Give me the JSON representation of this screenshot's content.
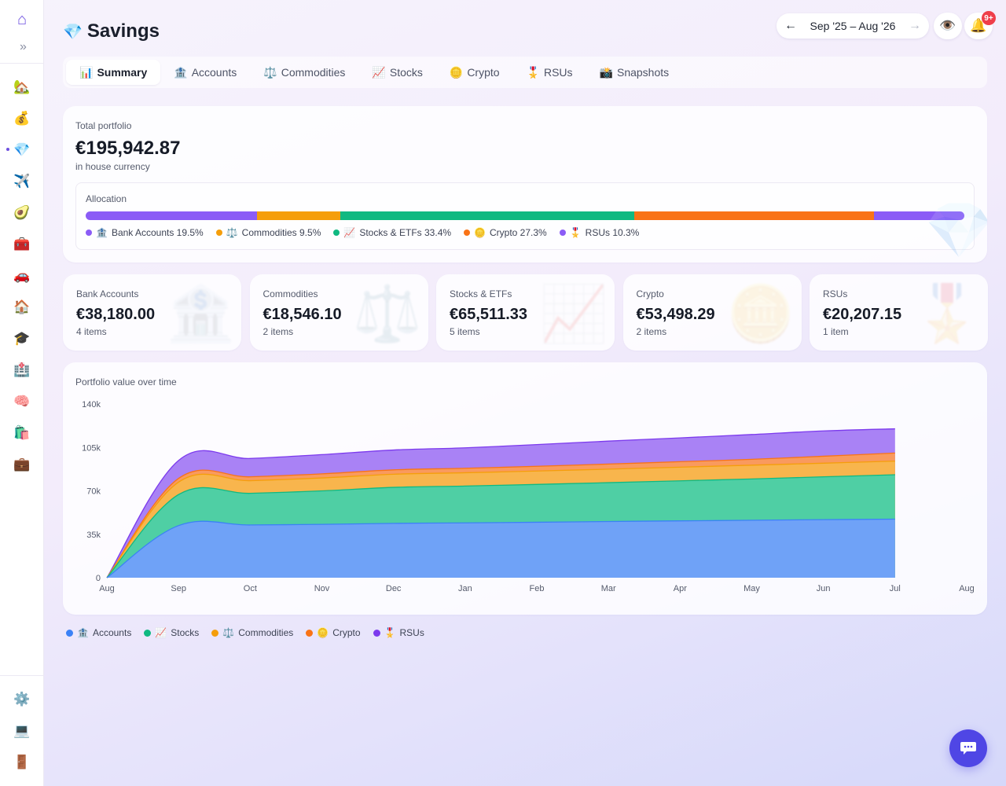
{
  "sidebar": {
    "logo_icon": "⌂",
    "expand_icon": "»",
    "items": [
      {
        "name": "sidebar-item-home",
        "icon": "🏡",
        "icon_name": "house-garden-icon",
        "top": 0
      },
      {
        "name": "sidebar-item-money",
        "icon": "💰",
        "icon_name": "money-bag-icon"
      },
      {
        "name": "sidebar-item-savings",
        "icon": "💎",
        "icon_name": "gem-icon",
        "active": true
      },
      {
        "name": "sidebar-item-travel",
        "icon": "✈️",
        "icon_name": "airplane-icon"
      },
      {
        "name": "sidebar-item-food",
        "icon": "🥑",
        "icon_name": "avocado-icon"
      },
      {
        "name": "sidebar-item-tools",
        "icon": "🧰",
        "icon_name": "toolbox-icon"
      },
      {
        "name": "sidebar-item-car",
        "icon": "🚗",
        "icon_name": "car-icon"
      },
      {
        "name": "sidebar-item-house",
        "icon": "🏠",
        "icon_name": "house-icon"
      },
      {
        "name": "sidebar-item-education",
        "icon": "🎓",
        "icon_name": "graduation-cap-icon"
      },
      {
        "name": "sidebar-item-health",
        "icon": "🏥",
        "icon_name": "hospital-icon"
      },
      {
        "name": "sidebar-item-mind",
        "icon": "🧠",
        "icon_name": "brain-icon"
      },
      {
        "name": "sidebar-item-shopping",
        "icon": "🛍️",
        "icon_name": "shopping-bags-icon"
      },
      {
        "name": "sidebar-item-work",
        "icon": "💼",
        "icon_name": "briefcase-icon"
      }
    ],
    "bottom_items": [
      {
        "name": "sidebar-item-settings",
        "icon": "⚙️",
        "icon_name": "gear-icon"
      },
      {
        "name": "sidebar-item-device",
        "icon": "💻",
        "icon_name": "laptop-icon"
      },
      {
        "name": "sidebar-item-logout",
        "icon": "🚪",
        "icon_name": "door-icon"
      }
    ]
  },
  "header": {
    "icon": "💎",
    "title": "Savings",
    "date_range": "Sep '25 – Aug '26",
    "prev_icon": "←",
    "next_icon": "→",
    "eye_icon": "👁️",
    "bell_icon": "🔔",
    "notification_count": "9+"
  },
  "tabs": [
    {
      "icon": "📊",
      "label": "Summary",
      "active": true
    },
    {
      "icon": "🏦",
      "label": "Accounts"
    },
    {
      "icon": "⚖️",
      "label": "Commodities"
    },
    {
      "icon": "📈",
      "label": "Stocks"
    },
    {
      "icon": "🪙",
      "label": "Crypto"
    },
    {
      "icon": "🎖️",
      "label": "RSUs"
    },
    {
      "icon": "📸",
      "label": "Snapshots"
    }
  ],
  "total": {
    "label": "Total portfolio",
    "value": "€195,942.87",
    "sub": "in house currency",
    "allocation_title": "Allocation",
    "allocation": [
      {
        "icon": "🏦",
        "label": "Bank Accounts 19.5%",
        "share": 19.5,
        "color": "#8b5cf6"
      },
      {
        "icon": "⚖️",
        "label": "Commodities 9.5%",
        "share": 9.5,
        "color": "#f59e0b"
      },
      {
        "icon": "📈",
        "label": "Stocks & ETFs 33.4%",
        "share": 33.4,
        "color": "#10b981"
      },
      {
        "icon": "🪙",
        "label": "Crypto 27.3%",
        "share": 27.3,
        "color": "#f97316"
      },
      {
        "icon": "🎖️",
        "label": "RSUs 10.3%",
        "share": 10.3,
        "color": "#8b5cf6"
      }
    ]
  },
  "stats": [
    {
      "label": "Bank Accounts",
      "value": "€38,180.00",
      "sub": "4 items",
      "ghost": "🏦"
    },
    {
      "label": "Commodities",
      "value": "€18,546.10",
      "sub": "2 items",
      "ghost": "⚖️"
    },
    {
      "label": "Stocks & ETFs",
      "value": "€65,511.33",
      "sub": "5 items",
      "ghost": "📈"
    },
    {
      "label": "Crypto",
      "value": "€53,498.29",
      "sub": "2 items",
      "ghost": "🪙"
    },
    {
      "label": "RSUs",
      "value": "€20,207.15",
      "sub": "1 item",
      "ghost": "🎖️"
    }
  ],
  "chart_data": {
    "type": "area",
    "stacked": true,
    "title": "Portfolio value over time",
    "x": [
      "Aug",
      "Sep",
      "Oct",
      "Nov",
      "Dec",
      "Jan",
      "Feb",
      "Mar",
      "Apr",
      "May",
      "Jun",
      "Jul",
      "Aug"
    ],
    "y_ticks": [
      "0",
      "35k",
      "70k",
      "105k",
      "140k"
    ],
    "ylim": [
      0,
      140000
    ],
    "series": [
      {
        "name": "Accounts",
        "icon": "🏦",
        "color": "#3b82f6",
        "fill": "#6fa2f7",
        "values": [
          0,
          42000,
          42500,
          43000,
          43800,
          44200,
          44700,
          45300,
          45800,
          46300,
          46800,
          47200,
          null
        ]
      },
      {
        "name": "Stocks",
        "icon": "📈",
        "color": "#10b981",
        "fill": "#4fcfa4",
        "values": [
          0,
          25000,
          25500,
          27000,
          29000,
          29700,
          30500,
          31300,
          32300,
          33300,
          34500,
          35800,
          null
        ]
      },
      {
        "name": "Commodities",
        "icon": "⚖️",
        "color": "#f59e0b",
        "fill": "#f8b54d",
        "values": [
          0,
          10000,
          10200,
          10400,
          10600,
          10700,
          10800,
          10900,
          11000,
          11100,
          11000,
          11000,
          null
        ]
      },
      {
        "name": "Crypto",
        "icon": "🪙",
        "color": "#f97316",
        "fill": "#f99a5e",
        "values": [
          0,
          3000,
          3100,
          3300,
          3500,
          3600,
          3800,
          4100,
          4400,
          4700,
          5600,
          6500,
          null
        ]
      },
      {
        "name": "RSUs",
        "icon": "🎖️",
        "color": "#7c3aed",
        "fill": "#a982f5",
        "values": [
          0,
          14500,
          14800,
          15500,
          16000,
          16500,
          17500,
          18500,
          19200,
          20000,
          20400,
          19500,
          null
        ]
      }
    ],
    "grid": false,
    "legend": "bottom"
  }
}
